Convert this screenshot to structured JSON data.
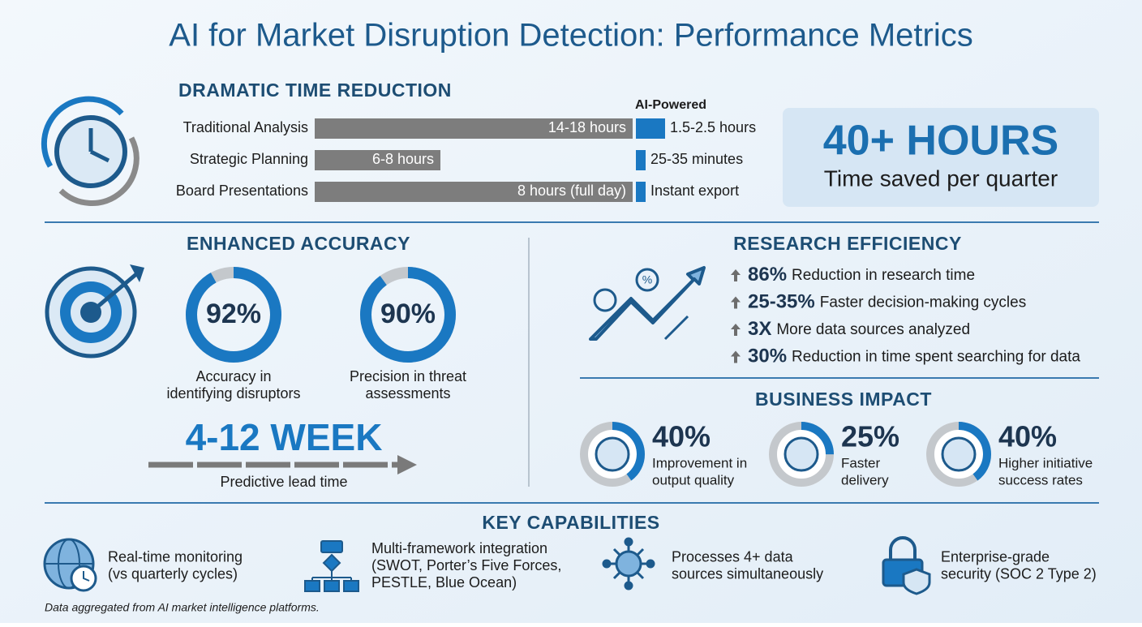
{
  "title": "AI for Market Disruption Detection: Performance Metrics",
  "time_reduction": {
    "heading": "DRAMATIC TIME REDUCTION",
    "ai_header": "AI-Powered",
    "rows": [
      {
        "label": "Traditional Analysis",
        "traditional": "14-18 hours",
        "ai": "1.5-2.5 hours"
      },
      {
        "label": "Strategic Planning",
        "traditional": "6-8 hours",
        "ai": "25-35 minutes"
      },
      {
        "label": "Board Presentations",
        "traditional": "8 hours (full day)",
        "ai": "Instant export"
      }
    ]
  },
  "time_saved": {
    "value": "40+ HOURS",
    "label": "Time saved per quarter"
  },
  "accuracy": {
    "heading": "ENHANCED ACCURACY",
    "rings": [
      {
        "value": 92,
        "value_label": "92%",
        "label_lines": [
          "Accuracy in",
          "identifying disruptors"
        ]
      },
      {
        "value": 90,
        "value_label": "90%",
        "label_lines": [
          "Precision in threat",
          "assessments"
        ]
      }
    ],
    "lead_time": "4-12 WEEK",
    "lead_time_label": "Predictive lead time"
  },
  "research": {
    "heading": "RESEARCH EFFICIENCY",
    "items": [
      {
        "value": "86%",
        "text": "Reduction in research time"
      },
      {
        "value": "25-35%",
        "text": "Faster decision-making cycles"
      },
      {
        "value": "3X",
        "text": "More data sources analyzed"
      },
      {
        "value": "30%",
        "text": "Reduction in time spent searching for data"
      }
    ]
  },
  "impact": {
    "heading": "BUSINESS IMPACT",
    "items": [
      {
        "value": 40,
        "value_label": "40%",
        "label_lines": [
          "Improvement in",
          "output quality"
        ]
      },
      {
        "value": 25,
        "value_label": "25%",
        "label_lines": [
          "Faster",
          "delivery"
        ]
      },
      {
        "value": 40,
        "value_label": "40%",
        "label_lines": [
          "Higher initiative",
          "success rates"
        ]
      }
    ]
  },
  "capabilities": {
    "heading": "KEY CAPABILITIES",
    "items": [
      {
        "lines": [
          "Real-time monitoring",
          "(vs quarterly cycles)"
        ]
      },
      {
        "lines": [
          "Multi-framework integration",
          "(SWOT, Porter’s Five Forces,",
          "PESTLE, Blue Ocean)"
        ]
      },
      {
        "lines": [
          "Processes 4+ data",
          "sources simultaneously"
        ]
      },
      {
        "lines": [
          "Enterprise-grade",
          "security (SOC 2 Type 2)"
        ]
      }
    ]
  },
  "footnote": "Data aggregated from AI market intelligence platforms."
}
